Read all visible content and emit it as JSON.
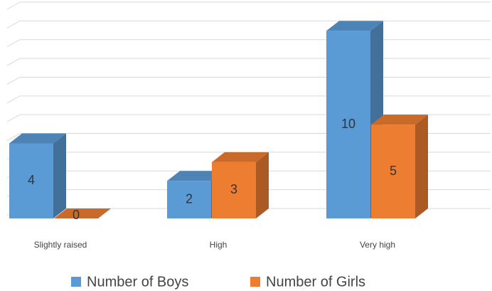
{
  "chart_data": {
    "type": "bar3d",
    "categories": [
      "Slightly raised",
      "High",
      "Very high"
    ],
    "series": [
      {
        "name": "Number of Boys",
        "color": "#5b9bd5",
        "values": [
          4,
          2,
          10
        ]
      },
      {
        "name": "Number of Girls",
        "color": "#ed7d31",
        "values": [
          0,
          3,
          5
        ]
      }
    ],
    "ylim": [
      0,
      11
    ],
    "yticks": [
      0,
      1,
      2,
      3,
      4,
      5,
      6,
      7,
      8,
      9,
      10,
      11
    ],
    "grid": true
  }
}
